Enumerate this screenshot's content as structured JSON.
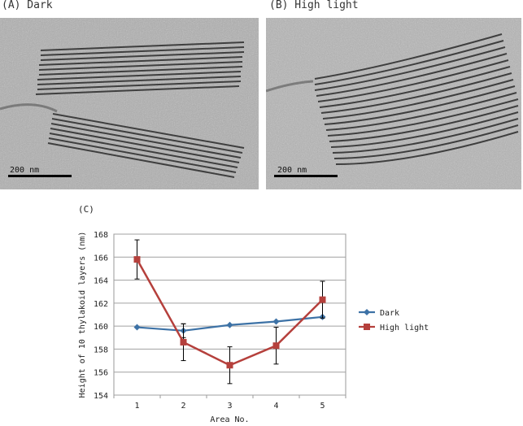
{
  "panels": {
    "a_label": "(A) Dark",
    "b_label": "(B) High light",
    "c_label": "(C)",
    "a_scalebar": "200 nm",
    "b_scalebar": "200 nm"
  },
  "chart_data": {
    "type": "line",
    "title": "",
    "xlabel": "Area No.",
    "ylabel": "Height of 10 thylakoid layers (nm)",
    "categories": [
      "1",
      "2",
      "3",
      "4",
      "5"
    ],
    "ylim": [
      154,
      168
    ],
    "yticks": [
      154,
      156,
      158,
      160,
      162,
      164,
      166,
      168
    ],
    "grid": "horizontal",
    "legend_position": "right",
    "series": [
      {
        "name": "Dark",
        "color": "#3d72a6",
        "marker": "diamond",
        "values": [
          159.9,
          159.6,
          160.1,
          160.4,
          160.8
        ],
        "errors": [
          0,
          0.6,
          0,
          0,
          0
        ]
      },
      {
        "name": "High light",
        "color": "#b5403c",
        "marker": "square",
        "values": [
          165.8,
          158.6,
          156.6,
          158.3,
          162.3
        ],
        "errors": [
          1.7,
          1.6,
          1.6,
          1.6,
          1.6
        ]
      }
    ]
  }
}
